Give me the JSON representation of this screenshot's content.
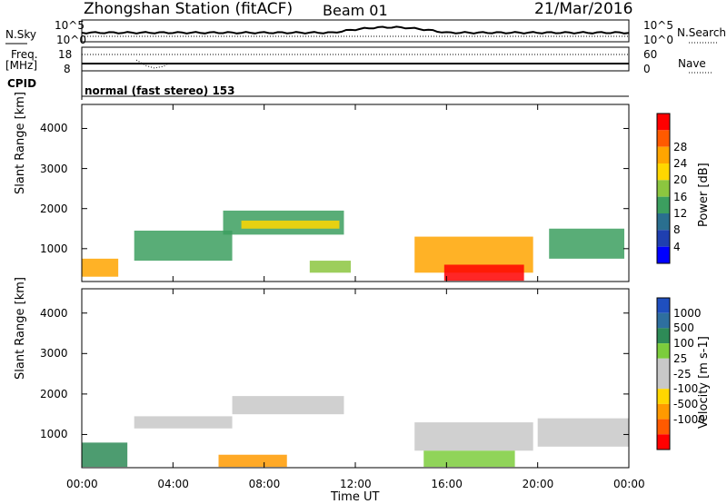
{
  "header": {
    "station": "Zhongshan Station (fitACF)",
    "beam": "Beam 01",
    "date": "21/Mar/2016"
  },
  "panels": {
    "nsky_label": "N.Sky",
    "nsky_ticks": [
      "10^5",
      "10^0"
    ],
    "nsearch_label": "N.Search",
    "nsearch_ticks": [
      "10^5",
      "10^0"
    ],
    "freq_label_1": "Freq.",
    "freq_label_2": "[MHz]",
    "freq_ticks": [
      "18",
      "8"
    ],
    "nave_label": "Nave",
    "nave_ticks": [
      "60",
      "0"
    ],
    "cpid_label": "CPID",
    "cpid_text": "normal (fast stereo) 153"
  },
  "colors": {
    "power": [
      "#0000ff",
      "#1f3fb0",
      "#2a6f8f",
      "#3c9f5f",
      "#8cc63f",
      "#ffd700",
      "#ffa500",
      "#ff5a00",
      "#ff0000"
    ],
    "velocity": [
      "#ff0000",
      "#ff5a00",
      "#ff9a00",
      "#ffd700",
      "#c8c8c8",
      "#c8c8c8",
      "#7ccd3c",
      "#2e8b57",
      "#2e6f9f",
      "#1f4fbf"
    ]
  },
  "chart_data": [
    {
      "type": "heatmap",
      "title": "Power",
      "ylabel": "Slant Range [km]",
      "y_ticks": [
        "1000",
        "2000",
        "3000",
        "4000"
      ],
      "ylim": [
        180,
        4600
      ],
      "x_ticks": [
        "00:00",
        "04:00",
        "08:00",
        "12:00",
        "16:00",
        "20:00",
        "00:00"
      ],
      "colorbar_label": "Power [dB]",
      "colorbar_ticks": [
        "4",
        "8",
        "12",
        "16",
        "20",
        "24",
        "28"
      ],
      "regions": [
        {
          "t": [
            0.0,
            1.6
          ],
          "r": [
            300,
            750
          ],
          "level": 6
        },
        {
          "t": [
            2.3,
            6.6
          ],
          "r": [
            700,
            1450
          ],
          "level": 3
        },
        {
          "t": [
            6.2,
            11.5
          ],
          "r": [
            1350,
            1950
          ],
          "level": 3
        },
        {
          "t": [
            7.0,
            11.3
          ],
          "r": [
            1500,
            1700
          ],
          "level": 5
        },
        {
          "t": [
            10.0,
            11.8
          ],
          "r": [
            400,
            700
          ],
          "level": 4
        },
        {
          "t": [
            14.6,
            19.8
          ],
          "r": [
            400,
            1300
          ],
          "level": 6
        },
        {
          "t": [
            15.9,
            19.4
          ],
          "r": [
            200,
            600
          ],
          "level": 8
        },
        {
          "t": [
            20.5,
            23.8
          ],
          "r": [
            750,
            1500
          ],
          "level": 3
        }
      ]
    },
    {
      "type": "heatmap",
      "title": "Velocity",
      "ylabel": "Slant Range [km]",
      "y_ticks": [
        "1000",
        "2000",
        "3000",
        "4000"
      ],
      "ylim": [
        180,
        4600
      ],
      "x_ticks": [
        "00:00",
        "04:00",
        "08:00",
        "12:00",
        "16:00",
        "20:00",
        "00:00"
      ],
      "xlabel": "Time UT",
      "colorbar_label": "Velocity [m s-1]",
      "colorbar_ticks": [
        "1000",
        "500",
        "100",
        "25",
        "-25",
        "-100",
        "-500",
        "-1000"
      ],
      "regions": [
        {
          "t": [
            0.0,
            2.0
          ],
          "r": [
            200,
            800
          ],
          "level": 7
        },
        {
          "t": [
            2.3,
            6.6
          ],
          "r": [
            1150,
            1450
          ],
          "level": 4
        },
        {
          "t": [
            6.6,
            11.5
          ],
          "r": [
            1500,
            1950
          ],
          "level": 4
        },
        {
          "t": [
            6.0,
            9.0
          ],
          "r": [
            200,
            500
          ],
          "level": 2
        },
        {
          "t": [
            14.6,
            19.8
          ],
          "r": [
            600,
            1300
          ],
          "level": 4
        },
        {
          "t": [
            15.0,
            19.0
          ],
          "r": [
            200,
            600
          ],
          "level": 6
        },
        {
          "t": [
            20.0,
            24.0
          ],
          "r": [
            700,
            1400
          ],
          "level": 4
        }
      ]
    }
  ]
}
